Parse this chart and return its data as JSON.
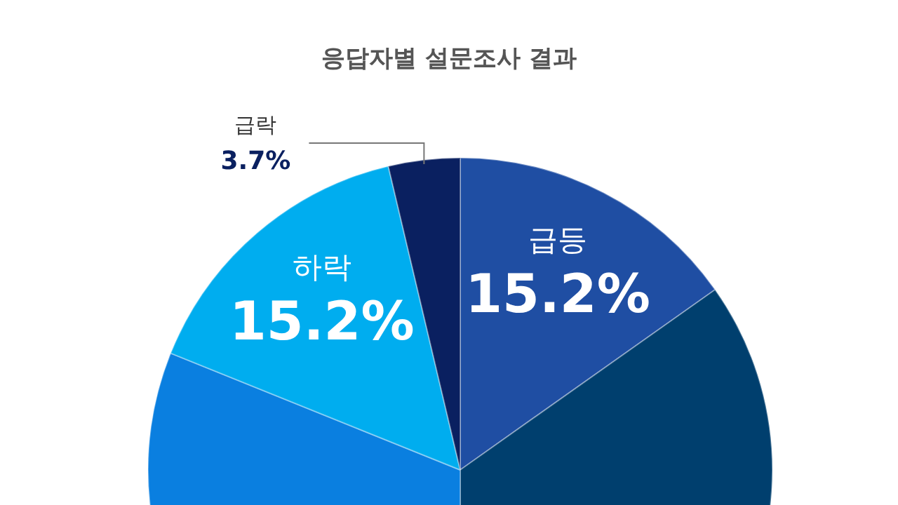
{
  "chart_data": {
    "type": "pie",
    "title": "응답자별 설문조사 결과",
    "categories": [
      "급등",
      null,
      null,
      "하락",
      "급락"
    ],
    "values": [
      15.2,
      34.8,
      31.1,
      15.2,
      3.7
    ],
    "colors": [
      "#1f4ea3",
      "#003f6e",
      "#0a7fe0",
      "#00adef",
      "#0a2060"
    ],
    "value_labels": [
      "15.2%",
      null,
      null,
      "15.2%",
      "3.7%"
    ],
    "legend": false
  }
}
